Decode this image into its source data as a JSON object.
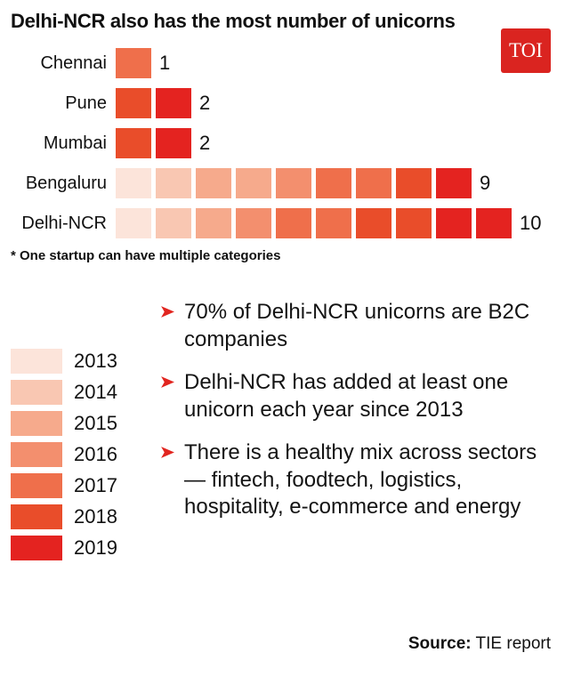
{
  "header": {
    "title": "Delhi-NCR also has the most number of unicorns",
    "logo_text": "TOI"
  },
  "colors": {
    "2013": "#fce4da",
    "2014": "#f9c7b2",
    "2015": "#f6aa8c",
    "2016": "#f38f6e",
    "2017": "#ef6f4b",
    "2018": "#e94d2a",
    "2019": "#e42320",
    "accent": "#e1251f",
    "logo_bg": "#da2420",
    "text": "#111111"
  },
  "chart_data": {
    "type": "bar",
    "orientation": "horizontal",
    "title": "Delhi-NCR also has the most number of unicorns",
    "categories": [
      "Chennai",
      "Pune",
      "Mumbai",
      "Bengaluru",
      "Delhi-NCR"
    ],
    "values": [
      1,
      2,
      2,
      9,
      10
    ],
    "legend_years": [
      "2013",
      "2014",
      "2015",
      "2016",
      "2017",
      "2018",
      "2019"
    ],
    "legend_position": "bottom-left",
    "grid": false,
    "rows": [
      {
        "label": "Chennai",
        "value": 1,
        "years": [
          "2017"
        ]
      },
      {
        "label": "Pune",
        "value": 2,
        "years": [
          "2018",
          "2019"
        ]
      },
      {
        "label": "Mumbai",
        "value": 2,
        "years": [
          "2018",
          "2019"
        ]
      },
      {
        "label": "Bengaluru",
        "value": 9,
        "years": [
          "2013",
          "2014",
          "2015",
          "2015",
          "2016",
          "2017",
          "2017",
          "2018",
          "2019"
        ]
      },
      {
        "label": "Delhi-NCR",
        "value": 10,
        "years": [
          "2013",
          "2014",
          "2015",
          "2016",
          "2017",
          "2017",
          "2018",
          "2018",
          "2019",
          "2019"
        ]
      }
    ],
    "note": "* One startup can have multiple categories"
  },
  "footnote": "* One startup can have multiple categories",
  "facts": [
    "70% of Delhi-NCR unicorns are B2C companies",
    "Delhi-NCR has added at least one unicorn each year since 2013",
    "There is a healthy mix across sectors — fintech, foodtech, logistics, hospitality, e-commerce and energy"
  ],
  "source": {
    "label": "Source:",
    "text": " TIE report"
  }
}
